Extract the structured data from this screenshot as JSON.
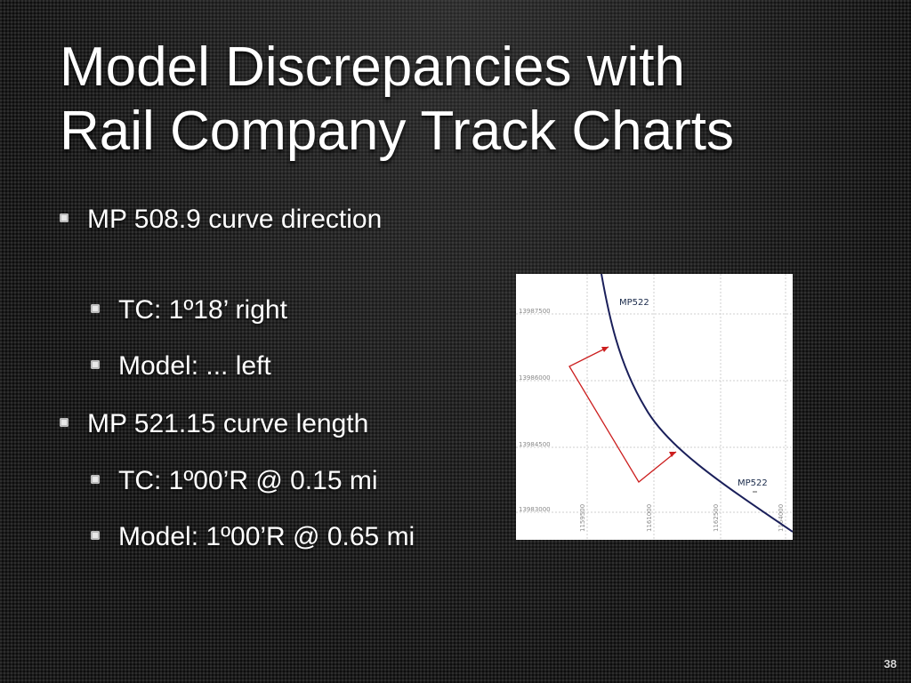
{
  "title": {
    "line1": "Model Discrepancies with",
    "line2": "Rail Company Track Charts"
  },
  "bullets": [
    {
      "text": "MP 508.9 curve direction",
      "level": 1
    },
    {
      "text": "TC: 1º18’ right",
      "level": 2
    },
    {
      "text": "Model: ... left",
      "level": 2
    },
    {
      "text": "MP 521.15 curve length",
      "level": 1
    },
    {
      "text": "TC: 1º00’R @ 0.15 mi",
      "level": 2
    },
    {
      "text": "Model: 1º00’R @ 0.65 mi",
      "level": 2
    }
  ],
  "map": {
    "y_ticks": [
      "13987500",
      "13986000",
      "13984500",
      "13983000"
    ],
    "x_ticks": [
      "1159500",
      "1161000",
      "1162500",
      "1164000"
    ],
    "labels": [
      "MP522",
      "MP522"
    ],
    "track_color": "#1a1f5a",
    "arrow_color": "#cc1f1f",
    "grid_color": "#cfcfcf"
  },
  "page_number": "38"
}
